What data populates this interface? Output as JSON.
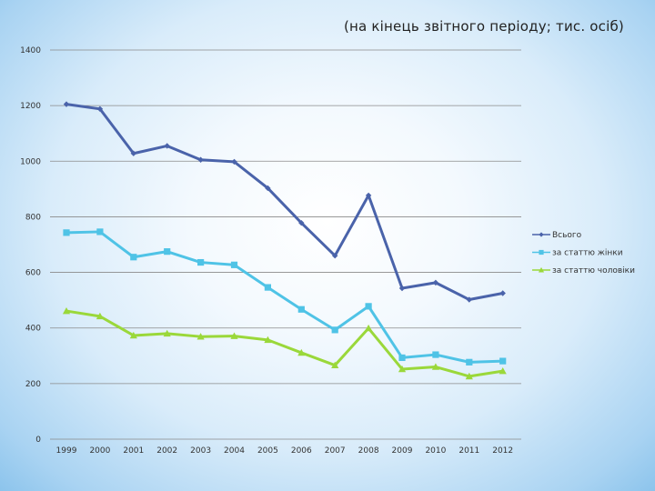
{
  "title": "(на кінець звітного періоду; тис. осіб)",
  "colors": {
    "series_total": "#4a63aa",
    "series_female": "#4fc3e6",
    "series_male": "#9ad83a",
    "gridline": "#8a8a8a"
  },
  "chart_data": {
    "type": "line",
    "title": "(на кінець звітного періоду; тис. осіб)",
    "xlabel": "",
    "ylabel": "",
    "categories": [
      "1999",
      "2000",
      "2001",
      "2002",
      "2003",
      "2004",
      "2005",
      "2006",
      "2007",
      "2008",
      "2009",
      "2010",
      "2011",
      "2012"
    ],
    "ylim": [
      0,
      1400
    ],
    "yticks": [
      "0",
      "200",
      "400",
      "600",
      "800",
      "1000",
      "1200",
      "1400"
    ],
    "grid": true,
    "legend_position": "right",
    "series": [
      {
        "name": "Всього",
        "marker": "diamond",
        "values": [
          1205,
          1188,
          1028,
          1055,
          1005,
          998,
          903,
          778,
          660,
          877,
          543,
          563,
          502,
          525
        ]
      },
      {
        "name": "за статтю жінки",
        "marker": "square",
        "values": [
          743,
          746,
          655,
          675,
          636,
          627,
          546,
          467,
          393,
          478,
          293,
          304,
          277,
          281
        ]
      },
      {
        "name": "за статтю чоловіки",
        "marker": "triangle",
        "values": [
          461,
          442,
          373,
          380,
          369,
          371,
          357,
          311,
          266,
          399,
          252,
          260,
          226,
          245
        ]
      }
    ]
  }
}
